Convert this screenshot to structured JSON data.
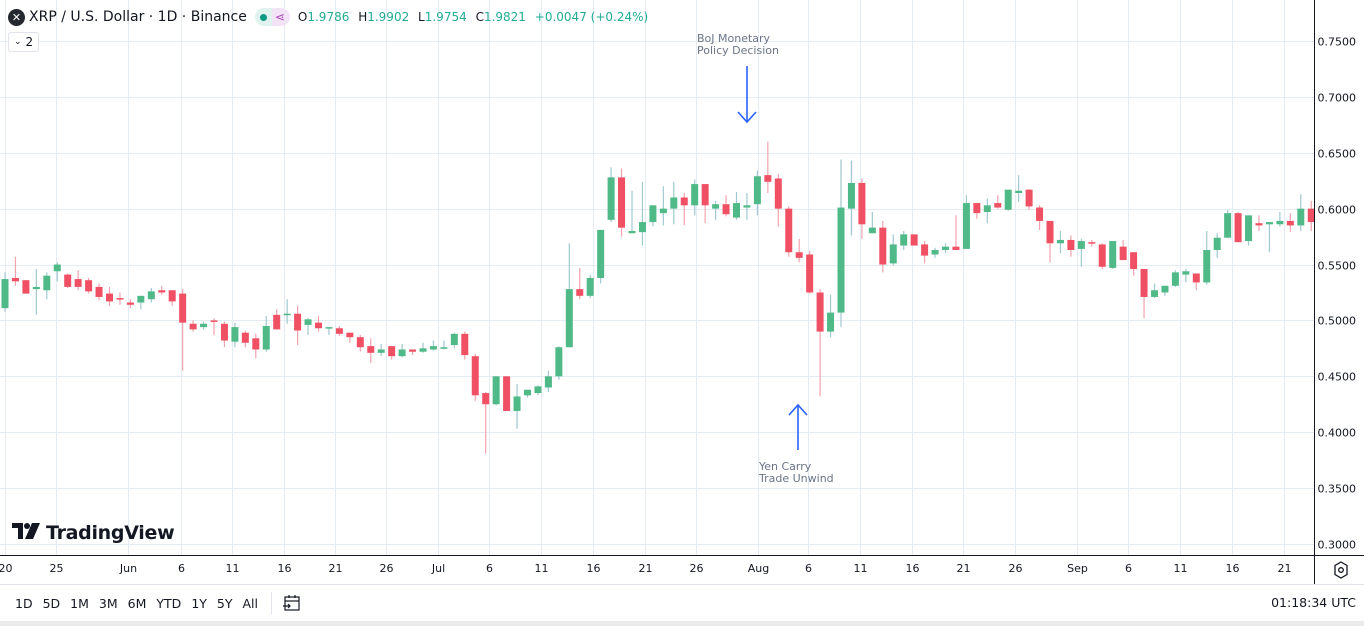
{
  "header": {
    "symbol_icon": "xrp-logo-icon",
    "title": "XRP / U.S. Dollar · 1D · Binance",
    "market_status_icon": "market-open-dot-icon",
    "data_source_icon": "network-icon",
    "ohlc": {
      "open_label": "O",
      "open": "1.9786",
      "high_label": "H",
      "high": "1.9902",
      "low_label": "L",
      "low": "1.9754",
      "close_label": "C",
      "close": "1.9821",
      "change": "+0.0047 (+0.24%)"
    },
    "indicators_toggle": {
      "icon": "chevron-down-icon",
      "count": "2"
    }
  },
  "annotations": [
    {
      "id": "boj",
      "text": "BoJ Monetary\nPolicy Decision",
      "arrow": "down",
      "color": "#2962ff"
    },
    {
      "id": "yen",
      "text": "Yen Carry\nTrade Unwind",
      "arrow": "up",
      "color": "#2962ff"
    }
  ],
  "branding": {
    "logo_text": "TradingView",
    "logo_icon": "tradingview-logo-icon"
  },
  "bottom_bar": {
    "ranges": [
      "1D",
      "5D",
      "1M",
      "3M",
      "6M",
      "YTD",
      "1Y",
      "5Y",
      "All"
    ],
    "goto_date_icon": "calendar-goto-icon",
    "clock": "01:18:34 UTC"
  },
  "settings_icon": "gear-settings-icon",
  "colors": {
    "up": "#4fb987",
    "down": "#ef5063",
    "grid": "#e4ebf2",
    "axis_text": "#6a6d78",
    "annotation": "#2962ff"
  },
  "chart_data": {
    "type": "candlestick",
    "title": "XRP / U.S. Dollar · 1D · Binance",
    "xlabel": "",
    "ylabel": "",
    "ylim": [
      0.29,
      0.77
    ],
    "y_ticks": [
      "0.7500",
      "0.7000",
      "0.6500",
      "0.6000",
      "0.5500",
      "0.5000",
      "0.4500",
      "0.4000",
      "0.3500",
      "0.3000"
    ],
    "x_ticks": [
      "20",
      "25",
      "Jun",
      "6",
      "11",
      "16",
      "21",
      "26",
      "Jul",
      "6",
      "11",
      "16",
      "21",
      "26",
      "Aug",
      "6",
      "11",
      "16",
      "21",
      "26",
      "Sep",
      "6",
      "11",
      "16",
      "21"
    ],
    "grid": true,
    "candles": [
      {
        "o": 0.511,
        "h": 0.543,
        "l": 0.508,
        "c": 0.537
      },
      {
        "o": 0.538,
        "h": 0.557,
        "l": 0.531,
        "c": 0.535
      },
      {
        "o": 0.536,
        "h": 0.534,
        "l": 0.524,
        "c": 0.524
      },
      {
        "o": 0.528,
        "h": 0.546,
        "l": 0.505,
        "c": 0.53
      },
      {
        "o": 0.527,
        "h": 0.543,
        "l": 0.519,
        "c": 0.54
      },
      {
        "o": 0.544,
        "h": 0.552,
        "l": 0.535,
        "c": 0.55
      },
      {
        "o": 0.541,
        "h": 0.542,
        "l": 0.529,
        "c": 0.53
      },
      {
        "o": 0.537,
        "h": 0.545,
        "l": 0.527,
        "c": 0.53
      },
      {
        "o": 0.536,
        "h": 0.538,
        "l": 0.524,
        "c": 0.526
      },
      {
        "o": 0.53,
        "h": 0.533,
        "l": 0.518,
        "c": 0.521
      },
      {
        "o": 0.524,
        "h": 0.53,
        "l": 0.513,
        "c": 0.517
      },
      {
        "o": 0.52,
        "h": 0.525,
        "l": 0.514,
        "c": 0.519
      },
      {
        "o": 0.516,
        "h": 0.519,
        "l": 0.511,
        "c": 0.514
      },
      {
        "o": 0.516,
        "h": 0.522,
        "l": 0.51,
        "c": 0.522
      },
      {
        "o": 0.519,
        "h": 0.529,
        "l": 0.516,
        "c": 0.526
      },
      {
        "o": 0.527,
        "h": 0.531,
        "l": 0.523,
        "c": 0.525
      },
      {
        "o": 0.527,
        "h": 0.527,
        "l": 0.513,
        "c": 0.517
      },
      {
        "o": 0.524,
        "h": 0.528,
        "l": 0.455,
        "c": 0.498
      },
      {
        "o": 0.497,
        "h": 0.5,
        "l": 0.49,
        "c": 0.492
      },
      {
        "o": 0.494,
        "h": 0.499,
        "l": 0.492,
        "c": 0.497
      },
      {
        "o": 0.5,
        "h": 0.502,
        "l": 0.487,
        "c": 0.499
      },
      {
        "o": 0.497,
        "h": 0.499,
        "l": 0.476,
        "c": 0.482
      },
      {
        "o": 0.481,
        "h": 0.498,
        "l": 0.476,
        "c": 0.494
      },
      {
        "o": 0.489,
        "h": 0.491,
        "l": 0.476,
        "c": 0.48
      },
      {
        "o": 0.484,
        "h": 0.488,
        "l": 0.466,
        "c": 0.474
      },
      {
        "o": 0.474,
        "h": 0.504,
        "l": 0.472,
        "c": 0.495
      },
      {
        "o": 0.505,
        "h": 0.51,
        "l": 0.494,
        "c": 0.492
      },
      {
        "o": 0.505,
        "h": 0.519,
        "l": 0.497,
        "c": 0.506
      },
      {
        "o": 0.506,
        "h": 0.513,
        "l": 0.478,
        "c": 0.491
      },
      {
        "o": 0.496,
        "h": 0.502,
        "l": 0.487,
        "c": 0.501
      },
      {
        "o": 0.498,
        "h": 0.504,
        "l": 0.49,
        "c": 0.493
      },
      {
        "o": 0.494,
        "h": 0.494,
        "l": 0.487,
        "c": 0.494
      },
      {
        "o": 0.493,
        "h": 0.495,
        "l": 0.486,
        "c": 0.488
      },
      {
        "o": 0.489,
        "h": 0.489,
        "l": 0.48,
        "c": 0.485
      },
      {
        "o": 0.485,
        "h": 0.487,
        "l": 0.472,
        "c": 0.476
      },
      {
        "o": 0.477,
        "h": 0.484,
        "l": 0.462,
        "c": 0.471
      },
      {
        "o": 0.471,
        "h": 0.479,
        "l": 0.468,
        "c": 0.474
      },
      {
        "o": 0.477,
        "h": 0.475,
        "l": 0.465,
        "c": 0.468
      },
      {
        "o": 0.468,
        "h": 0.479,
        "l": 0.467,
        "c": 0.474
      },
      {
        "o": 0.474,
        "h": 0.474,
        "l": 0.469,
        "c": 0.472
      },
      {
        "o": 0.472,
        "h": 0.48,
        "l": 0.471,
        "c": 0.475
      },
      {
        "o": 0.474,
        "h": 0.482,
        "l": 0.473,
        "c": 0.477
      },
      {
        "o": 0.475,
        "h": 0.482,
        "l": 0.474,
        "c": 0.476
      },
      {
        "o": 0.478,
        "h": 0.489,
        "l": 0.475,
        "c": 0.488
      },
      {
        "o": 0.488,
        "h": 0.49,
        "l": 0.465,
        "c": 0.469
      },
      {
        "o": 0.468,
        "h": 0.47,
        "l": 0.428,
        "c": 0.433
      },
      {
        "o": 0.435,
        "h": 0.436,
        "l": 0.381,
        "c": 0.425
      },
      {
        "o": 0.425,
        "h": 0.45,
        "l": 0.424,
        "c": 0.45
      },
      {
        "o": 0.45,
        "h": 0.449,
        "l": 0.419,
        "c": 0.419
      },
      {
        "o": 0.419,
        "h": 0.443,
        "l": 0.403,
        "c": 0.432
      },
      {
        "o": 0.433,
        "h": 0.438,
        "l": 0.431,
        "c": 0.438
      },
      {
        "o": 0.435,
        "h": 0.442,
        "l": 0.433,
        "c": 0.441
      },
      {
        "o": 0.44,
        "h": 0.455,
        "l": 0.436,
        "c": 0.45
      },
      {
        "o": 0.45,
        "h": 0.477,
        "l": 0.447,
        "c": 0.476
      },
      {
        "o": 0.476,
        "h": 0.569,
        "l": 0.476,
        "c": 0.528
      },
      {
        "o": 0.528,
        "h": 0.547,
        "l": 0.519,
        "c": 0.522
      },
      {
        "o": 0.522,
        "h": 0.541,
        "l": 0.52,
        "c": 0.538
      },
      {
        "o": 0.538,
        "h": 0.581,
        "l": 0.533,
        "c": 0.581
      },
      {
        "o": 0.59,
        "h": 0.637,
        "l": 0.588,
        "c": 0.628
      },
      {
        "o": 0.628,
        "h": 0.636,
        "l": 0.575,
        "c": 0.583
      },
      {
        "o": 0.578,
        "h": 0.616,
        "l": 0.579,
        "c": 0.58
      },
      {
        "o": 0.579,
        "h": 0.624,
        "l": 0.567,
        "c": 0.588
      },
      {
        "o": 0.588,
        "h": 0.603,
        "l": 0.584,
        "c": 0.603
      },
      {
        "o": 0.596,
        "h": 0.62,
        "l": 0.585,
        "c": 0.6
      },
      {
        "o": 0.6,
        "h": 0.624,
        "l": 0.586,
        "c": 0.61
      },
      {
        "o": 0.61,
        "h": 0.614,
        "l": 0.585,
        "c": 0.603
      },
      {
        "o": 0.603,
        "h": 0.626,
        "l": 0.594,
        "c": 0.622
      },
      {
        "o": 0.622,
        "h": 0.621,
        "l": 0.587,
        "c": 0.603
      },
      {
        "o": 0.6,
        "h": 0.607,
        "l": 0.59,
        "c": 0.604
      },
      {
        "o": 0.604,
        "h": 0.612,
        "l": 0.593,
        "c": 0.595
      },
      {
        "o": 0.592,
        "h": 0.615,
        "l": 0.59,
        "c": 0.605
      },
      {
        "o": 0.601,
        "h": 0.614,
        "l": 0.59,
        "c": 0.603
      },
      {
        "o": 0.604,
        "h": 0.634,
        "l": 0.594,
        "c": 0.629
      },
      {
        "o": 0.63,
        "h": 0.66,
        "l": 0.614,
        "c": 0.624
      },
      {
        "o": 0.627,
        "h": 0.631,
        "l": 0.584,
        "c": 0.6
      },
      {
        "o": 0.6,
        "h": 0.602,
        "l": 0.557,
        "c": 0.561
      },
      {
        "o": 0.561,
        "h": 0.573,
        "l": 0.552,
        "c": 0.556
      },
      {
        "o": 0.559,
        "h": 0.562,
        "l": 0.524,
        "c": 0.525
      },
      {
        "o": 0.525,
        "h": 0.528,
        "l": 0.432,
        "c": 0.49
      },
      {
        "o": 0.49,
        "h": 0.523,
        "l": 0.485,
        "c": 0.507
      },
      {
        "o": 0.507,
        "h": 0.644,
        "l": 0.494,
        "c": 0.601
      },
      {
        "o": 0.6,
        "h": 0.643,
        "l": 0.576,
        "c": 0.623
      },
      {
        "o": 0.623,
        "h": 0.627,
        "l": 0.573,
        "c": 0.586
      },
      {
        "o": 0.578,
        "h": 0.597,
        "l": 0.582,
        "c": 0.583
      },
      {
        "o": 0.583,
        "h": 0.589,
        "l": 0.543,
        "c": 0.55
      },
      {
        "o": 0.551,
        "h": 0.577,
        "l": 0.549,
        "c": 0.568
      },
      {
        "o": 0.567,
        "h": 0.58,
        "l": 0.563,
        "c": 0.577
      },
      {
        "o": 0.577,
        "h": 0.577,
        "l": 0.568,
        "c": 0.567
      },
      {
        "o": 0.568,
        "h": 0.571,
        "l": 0.551,
        "c": 0.558
      },
      {
        "o": 0.559,
        "h": 0.565,
        "l": 0.556,
        "c": 0.563
      },
      {
        "o": 0.563,
        "h": 0.569,
        "l": 0.56,
        "c": 0.566
      },
      {
        "o": 0.566,
        "h": 0.594,
        "l": 0.563,
        "c": 0.563
      },
      {
        "o": 0.564,
        "h": 0.612,
        "l": 0.566,
        "c": 0.605
      },
      {
        "o": 0.605,
        "h": 0.605,
        "l": 0.591,
        "c": 0.596
      },
      {
        "o": 0.597,
        "h": 0.609,
        "l": 0.587,
        "c": 0.603
      },
      {
        "o": 0.605,
        "h": 0.612,
        "l": 0.6,
        "c": 0.601
      },
      {
        "o": 0.599,
        "h": 0.617,
        "l": 0.598,
        "c": 0.617
      },
      {
        "o": 0.614,
        "h": 0.63,
        "l": 0.606,
        "c": 0.616
      },
      {
        "o": 0.617,
        "h": 0.615,
        "l": 0.599,
        "c": 0.602
      },
      {
        "o": 0.601,
        "h": 0.603,
        "l": 0.581,
        "c": 0.589
      },
      {
        "o": 0.589,
        "h": 0.589,
        "l": 0.552,
        "c": 0.569
      },
      {
        "o": 0.569,
        "h": 0.58,
        "l": 0.56,
        "c": 0.572
      },
      {
        "o": 0.572,
        "h": 0.576,
        "l": 0.557,
        "c": 0.563
      },
      {
        "o": 0.564,
        "h": 0.573,
        "l": 0.548,
        "c": 0.571
      },
      {
        "o": 0.57,
        "h": 0.572,
        "l": 0.566,
        "c": 0.569
      },
      {
        "o": 0.568,
        "h": 0.569,
        "l": 0.546,
        "c": 0.548
      },
      {
        "o": 0.547,
        "h": 0.571,
        "l": 0.546,
        "c": 0.571
      },
      {
        "o": 0.566,
        "h": 0.572,
        "l": 0.554,
        "c": 0.554
      },
      {
        "o": 0.561,
        "h": 0.557,
        "l": 0.54,
        "c": 0.546
      },
      {
        "o": 0.546,
        "h": 0.544,
        "l": 0.502,
        "c": 0.521
      },
      {
        "o": 0.521,
        "h": 0.533,
        "l": 0.52,
        "c": 0.527
      },
      {
        "o": 0.525,
        "h": 0.531,
        "l": 0.522,
        "c": 0.531
      },
      {
        "o": 0.531,
        "h": 0.545,
        "l": 0.53,
        "c": 0.543
      },
      {
        "o": 0.541,
        "h": 0.546,
        "l": 0.534,
        "c": 0.544
      },
      {
        "o": 0.542,
        "h": 0.542,
        "l": 0.527,
        "c": 0.534
      },
      {
        "o": 0.534,
        "h": 0.58,
        "l": 0.532,
        "c": 0.563
      },
      {
        "o": 0.563,
        "h": 0.578,
        "l": 0.556,
        "c": 0.574
      },
      {
        "o": 0.574,
        "h": 0.599,
        "l": 0.574,
        "c": 0.596
      },
      {
        "o": 0.596,
        "h": 0.597,
        "l": 0.57,
        "c": 0.57
      },
      {
        "o": 0.571,
        "h": 0.594,
        "l": 0.567,
        "c": 0.594
      },
      {
        "o": 0.587,
        "h": 0.594,
        "l": 0.58,
        "c": 0.585
      },
      {
        "o": 0.586,
        "h": 0.587,
        "l": 0.561,
        "c": 0.588
      },
      {
        "o": 0.586,
        "h": 0.597,
        "l": 0.584,
        "c": 0.589
      },
      {
        "o": 0.589,
        "h": 0.596,
        "l": 0.579,
        "c": 0.585
      },
      {
        "o": 0.585,
        "h": 0.613,
        "l": 0.58,
        "c": 0.6
      },
      {
        "o": 0.6,
        "h": 0.607,
        "l": 0.58,
        "c": 0.588
      },
      {
        "o": 0.589,
        "h": 0.597,
        "l": 0.581,
        "c": 0.586
      },
      {
        "o": 0.585,
        "h": 0.592,
        "l": 0.583,
        "c": 0.591
      }
    ]
  }
}
